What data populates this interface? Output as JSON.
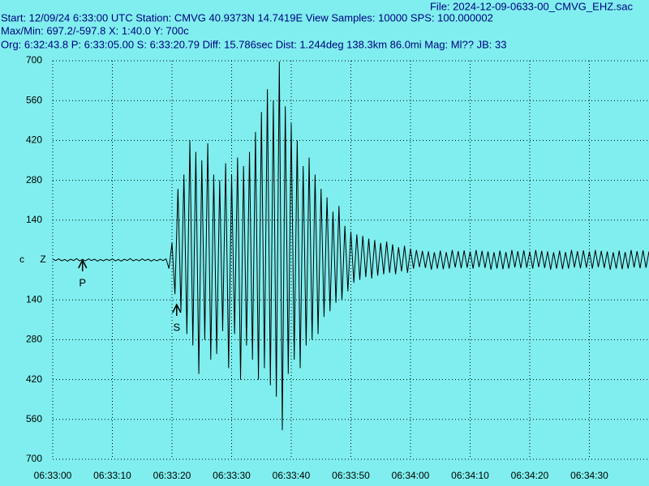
{
  "chart_data": {
    "type": "line",
    "file": "File: 2024-12-09-0633-00_CMVG_EHZ.sac",
    "header": [
      "Start: 12/09/24  6:33:00 UTC Station: CMVG 40.9373N 14.7419E View Samples: 10000  SPS: 100.000002",
      "Max/Min: 697.2/-597.8 X: 1:40.0 Y: 700c",
      "Org: 6:32:43.8 P: 6:33:05.00 S: 6:33:20.79 Diff: 15.786sec Dist: 1.244deg 138.3km 86.0mi  Mag: Ml?? JB: 33"
    ],
    "y_unit": "c",
    "channel": "Z",
    "background": "#80eeee",
    "grid": true,
    "xlim": [
      0,
      100
    ],
    "ylim": [
      -700,
      700
    ],
    "xticks": [
      {
        "value": 0,
        "label": "06:33:00"
      },
      {
        "value": 10,
        "label": "06:33:10"
      },
      {
        "value": 20,
        "label": "06:33:20"
      },
      {
        "value": 30,
        "label": "06:33:30"
      },
      {
        "value": 40,
        "label": "06:33:40"
      },
      {
        "value": 50,
        "label": "06:33:50"
      },
      {
        "value": 60,
        "label": "06:34:00"
      },
      {
        "value": 70,
        "label": "06:34:10"
      },
      {
        "value": 80,
        "label": "06:34:20"
      },
      {
        "value": 90,
        "label": "06:34:30"
      }
    ],
    "yticks": [
      700,
      560,
      420,
      280,
      140,
      {
        "value": -140,
        "label": "140"
      },
      {
        "value": -280,
        "label": "280"
      },
      {
        "value": -420,
        "label": "420"
      },
      {
        "value": -560,
        "label": "560"
      },
      {
        "value": -700,
        "label": "700"
      }
    ],
    "markers": [
      {
        "label": "P",
        "x": 5
      },
      {
        "label": "S",
        "x": 20.79
      }
    ],
    "x": [
      0,
      0.5,
      1,
      1.5,
      2,
      2.5,
      3,
      3.5,
      4,
      4.5,
      5,
      5.5,
      6,
      6.5,
      7,
      7.5,
      8,
      8.5,
      9,
      9.5,
      10,
      10.5,
      11,
      11.5,
      12,
      12.5,
      13,
      13.5,
      14,
      14.5,
      15,
      15.5,
      16,
      16.5,
      17,
      17.5,
      18,
      18.5,
      19,
      19.5,
      20,
      20.5,
      21,
      21.5,
      22,
      22.5,
      23,
      23.5,
      24,
      24.5,
      25,
      25.5,
      26,
      26.5,
      27,
      27.5,
      28,
      28.5,
      29,
      29.5,
      30,
      30.5,
      31,
      31.5,
      32,
      32.5,
      33,
      33.5,
      34,
      34.5,
      35,
      35.5,
      36,
      36.5,
      37,
      37.5,
      38,
      38.5,
      39,
      39.5,
      40,
      40.5,
      41,
      41.5,
      42,
      42.5,
      43,
      43.5,
      44,
      44.5,
      45,
      45.5,
      46,
      46.5,
      47,
      47.5,
      48,
      48.5,
      49,
      49.5,
      50,
      50.5,
      51,
      51.5,
      52,
      52.5,
      53,
      53.5,
      54,
      54.5,
      55,
      55.5,
      56,
      56.5,
      57,
      57.5,
      58,
      58.5,
      59,
      59.5,
      60,
      60.5,
      61,
      61.5,
      62,
      62.5,
      63,
      63.5,
      64,
      64.5,
      65,
      65.5,
      66,
      66.5,
      67,
      67.5,
      68,
      68.5,
      69,
      69.5,
      70,
      70.5,
      71,
      71.5,
      72,
      72.5,
      73,
      73.5,
      74,
      74.5,
      75,
      75.5,
      76,
      76.5,
      77,
      77.5,
      78,
      78.5,
      79,
      79.5,
      80,
      80.5,
      81,
      81.5,
      82,
      82.5,
      83,
      83.5,
      84,
      84.5,
      85,
      85.5,
      86,
      86.5,
      87,
      87.5,
      88,
      88.5,
      89,
      89.5,
      90,
      90.5,
      91,
      91.5,
      92,
      92.5,
      93,
      93.5,
      94,
      94.5,
      95,
      95.5,
      96,
      96.5,
      97,
      97.5,
      98,
      98.5,
      99,
      99.5,
      100
    ],
    "series": [
      {
        "color": "#000000",
        "values": [
          3,
          -2,
          4,
          -3,
          2,
          -4,
          3,
          -2,
          5,
          -3,
          2,
          -3,
          4,
          -2,
          3,
          -4,
          2,
          -3,
          3,
          -2,
          4,
          -3,
          2,
          -4,
          3,
          -2,
          5,
          -3,
          2,
          -3,
          4,
          -2,
          3,
          -4,
          2,
          -3,
          3,
          -2,
          4,
          -30,
          60,
          -120,
          250,
          -180,
          300,
          -260,
          420,
          -300,
          380,
          -400,
          350,
          -280,
          410,
          -350,
          300,
          -330,
          280,
          -250,
          340,
          -380,
          300,
          -260,
          360,
          -420,
          330,
          -300,
          380,
          -350,
          450,
          -420,
          520,
          -380,
          600,
          -440,
          560,
          -480,
          697.2,
          -597.8,
          540,
          -400,
          480,
          -350,
          420,
          -380,
          330,
          -300,
          360,
          -280,
          300,
          -260,
          250,
          -200,
          220,
          -180,
          170,
          -150,
          190,
          -140,
          120,
          -110,
          100,
          -80,
          90,
          -70,
          85,
          -60,
          75,
          -65,
          70,
          -55,
          60,
          -50,
          65,
          -45,
          55,
          -50,
          45,
          -40,
          50,
          -45,
          40,
          -30,
          35,
          -25,
          32,
          -28,
          30,
          -34,
          27,
          -30,
          33,
          -32,
          28,
          -30,
          35,
          -26,
          31,
          -29,
          34,
          -27,
          30,
          -30,
          35,
          -25,
          32,
          -28,
          30,
          -34,
          27,
          -30,
          33,
          -32,
          28,
          -30,
          35,
          -26,
          31,
          -29,
          34,
          -27,
          30,
          -30,
          35,
          -25,
          32,
          -28,
          30,
          -34,
          27,
          -30,
          33,
          -32,
          28,
          -30,
          35,
          -26,
          31,
          -29,
          34,
          -27,
          30,
          -30,
          35,
          -25,
          32,
          -28,
          30,
          -34,
          27,
          -30,
          33,
          -32,
          28,
          -30,
          35,
          -26,
          31,
          -29,
          34,
          -27,
          30
        ]
      }
    ]
  }
}
